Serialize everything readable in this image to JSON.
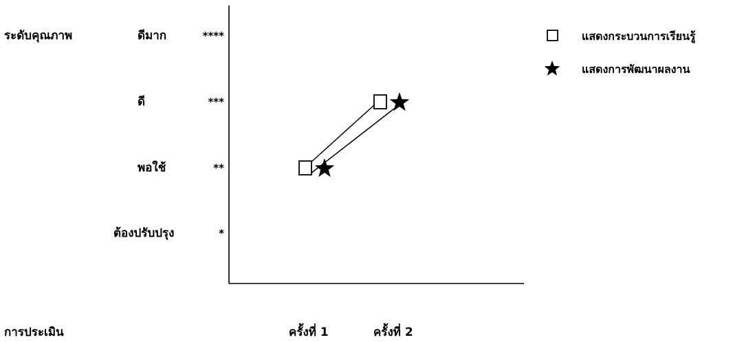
{
  "chart_data": {
    "type": "line",
    "ylabel": "ระดับคุณภาพ",
    "xlabel": "การประเมิน",
    "categories": [
      "ครั้งที่ 1",
      "ครั้งที่ 2"
    ],
    "y_levels": [
      {
        "value": 4,
        "label": "ดีมาก",
        "stars": "****"
      },
      {
        "value": 3,
        "label": "ดี",
        "stars": "***"
      },
      {
        "value": 2,
        "label": "พอใช้",
        "stars": "**"
      },
      {
        "value": 1,
        "label": "ต้องปรับปรุง",
        "stars": "*"
      }
    ],
    "ylim": [
      0,
      4
    ],
    "grid": false,
    "legend_position": "top-right",
    "series": [
      {
        "name": "แสดงกระบวนการเรียนรู้",
        "marker": "square",
        "values": [
          2,
          3
        ]
      },
      {
        "name": "แสดงการพัฒนาผลงาน",
        "marker": "star",
        "values": [
          2,
          3
        ]
      }
    ]
  }
}
